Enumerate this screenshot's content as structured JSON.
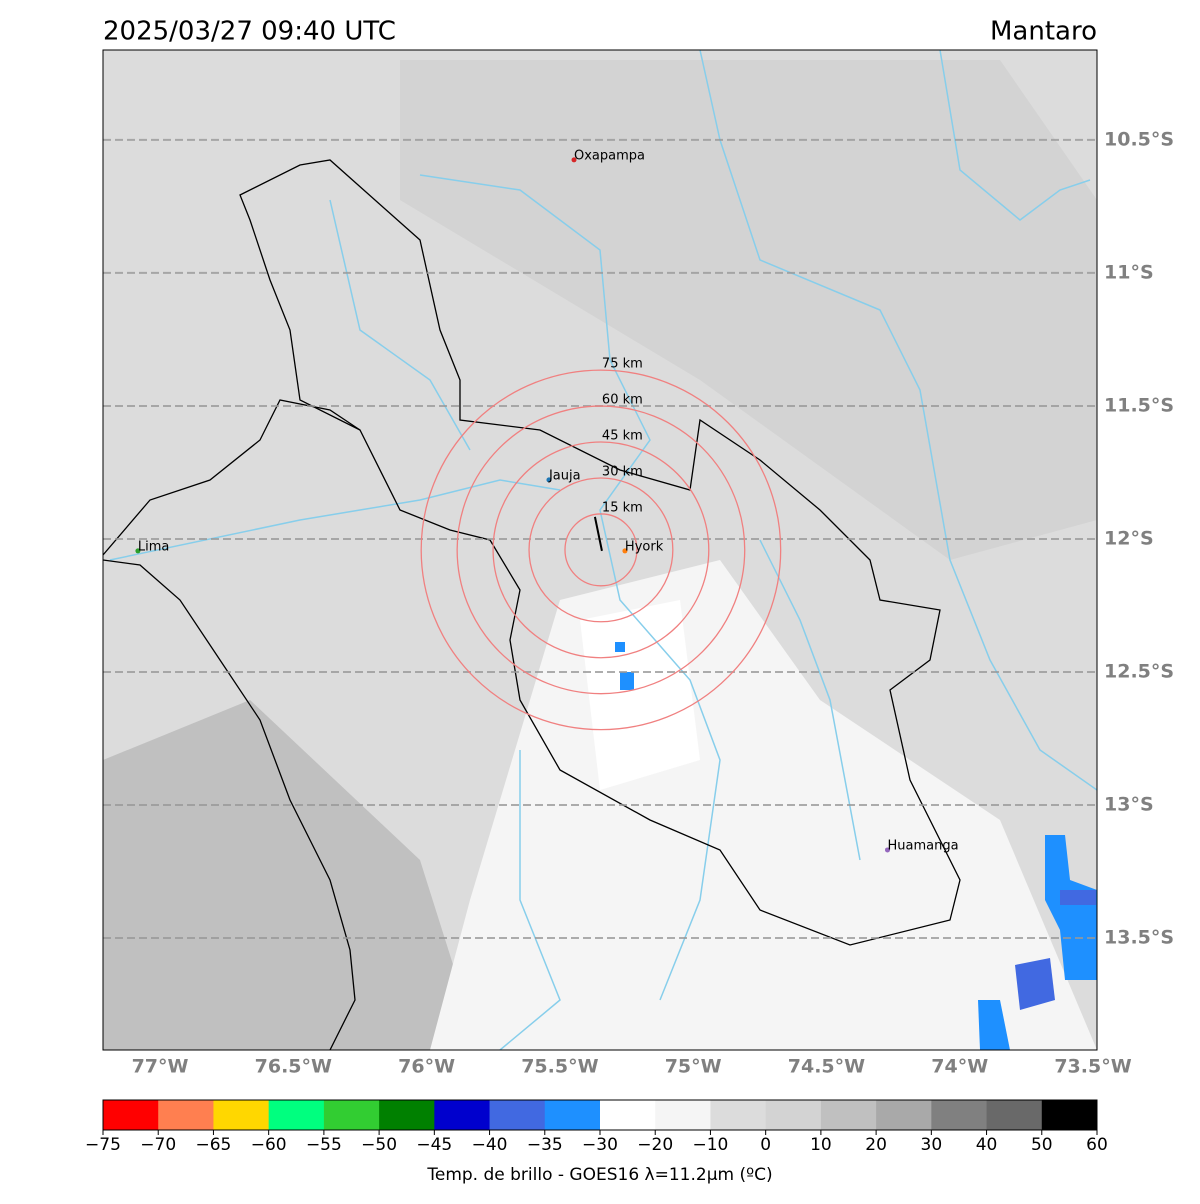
{
  "map": {
    "title": "2025/03/27 09:40 UTC",
    "region": "Mantaro",
    "lon_range": [
      -77.214,
      -73.485
    ],
    "lat_range": [
      -10.162,
      -13.921
    ],
    "xticks": [
      {
        "value": -77,
        "label": "77°W"
      },
      {
        "value": -76.5,
        "label": "76.5°W"
      },
      {
        "value": -76,
        "label": "76°W"
      },
      {
        "value": -75.5,
        "label": "75.5°W"
      },
      {
        "value": -75,
        "label": "75°W"
      },
      {
        "value": -74.5,
        "label": "74.5°W"
      },
      {
        "value": -74,
        "label": "74°W"
      },
      {
        "value": -73.5,
        "label": "73.5°W"
      }
    ],
    "yticks": [
      {
        "value": -10.5,
        "label": "10.5°S"
      },
      {
        "value": -11,
        "label": "11°S"
      },
      {
        "value": -11.5,
        "label": "11.5°S"
      },
      {
        "value": -12,
        "label": "12°S"
      },
      {
        "value": -12.5,
        "label": "12.5°S"
      },
      {
        "value": -13,
        "label": "13°S"
      },
      {
        "value": -13.5,
        "label": "13.5°S"
      }
    ],
    "cities": [
      {
        "name": "Oxapampa",
        "lon": -75.447,
        "lat": -10.575,
        "color": "#d62728"
      },
      {
        "name": "Jauja",
        "lon": -75.541,
        "lat": -11.778,
        "color": "#1f77b4"
      },
      {
        "name": "Lima",
        "lon": -77.083,
        "lat": -12.045,
        "color": "#2ca02c"
      },
      {
        "name": "Huamanga",
        "lon": -74.271,
        "lat": -13.169,
        "color": "#9467bd"
      },
      {
        "name": "Hyork",
        "lon": -75.256,
        "lat": -12.045,
        "color": "#ff7f0e"
      }
    ],
    "radar": {
      "lon": -75.346,
      "lat": -12.041,
      "color": "#f08080",
      "rings": [
        {
          "radius_km": 15,
          "label": "15 km"
        },
        {
          "radius_km": 30,
          "label": "30 km"
        },
        {
          "radius_km": 45,
          "label": "45 km"
        },
        {
          "radius_km": 60,
          "label": "60 km"
        },
        {
          "radius_km": 75,
          "label": "75 km"
        }
      ]
    },
    "colorbar": {
      "label": "Temp. de brillo - GOES16 λ=11.2μm (ºC)",
      "bounds": [
        {
          "value": -75,
          "label": "−75"
        },
        {
          "value": -70,
          "label": "−70"
        },
        {
          "value": -65,
          "label": "−65"
        },
        {
          "value": -60,
          "label": "−60"
        },
        {
          "value": -55,
          "label": "−55"
        },
        {
          "value": -50,
          "label": "−50"
        },
        {
          "value": -45,
          "label": "−45"
        },
        {
          "value": -40,
          "label": "−40"
        },
        {
          "value": -35,
          "label": "−35"
        },
        {
          "value": -30,
          "label": "−30"
        },
        {
          "value": -20,
          "label": "−20"
        },
        {
          "value": -10,
          "label": "−10"
        },
        0,
        10,
        20,
        30,
        40,
        50,
        60
      ],
      "colors": [
        "#ff0000",
        "#ff7f50",
        "#ffd700",
        "#00ff7f",
        "#32cd32",
        "#008000",
        "#0000cd",
        "#4169e1",
        "#1e90ff",
        "#ffffff",
        "#f5f5f5",
        "#dcdcdc",
        "#d3d3d3",
        "#c0c0c0",
        "#a9a9a9",
        "#808080",
        "#696969",
        "#000000"
      ]
    }
  }
}
